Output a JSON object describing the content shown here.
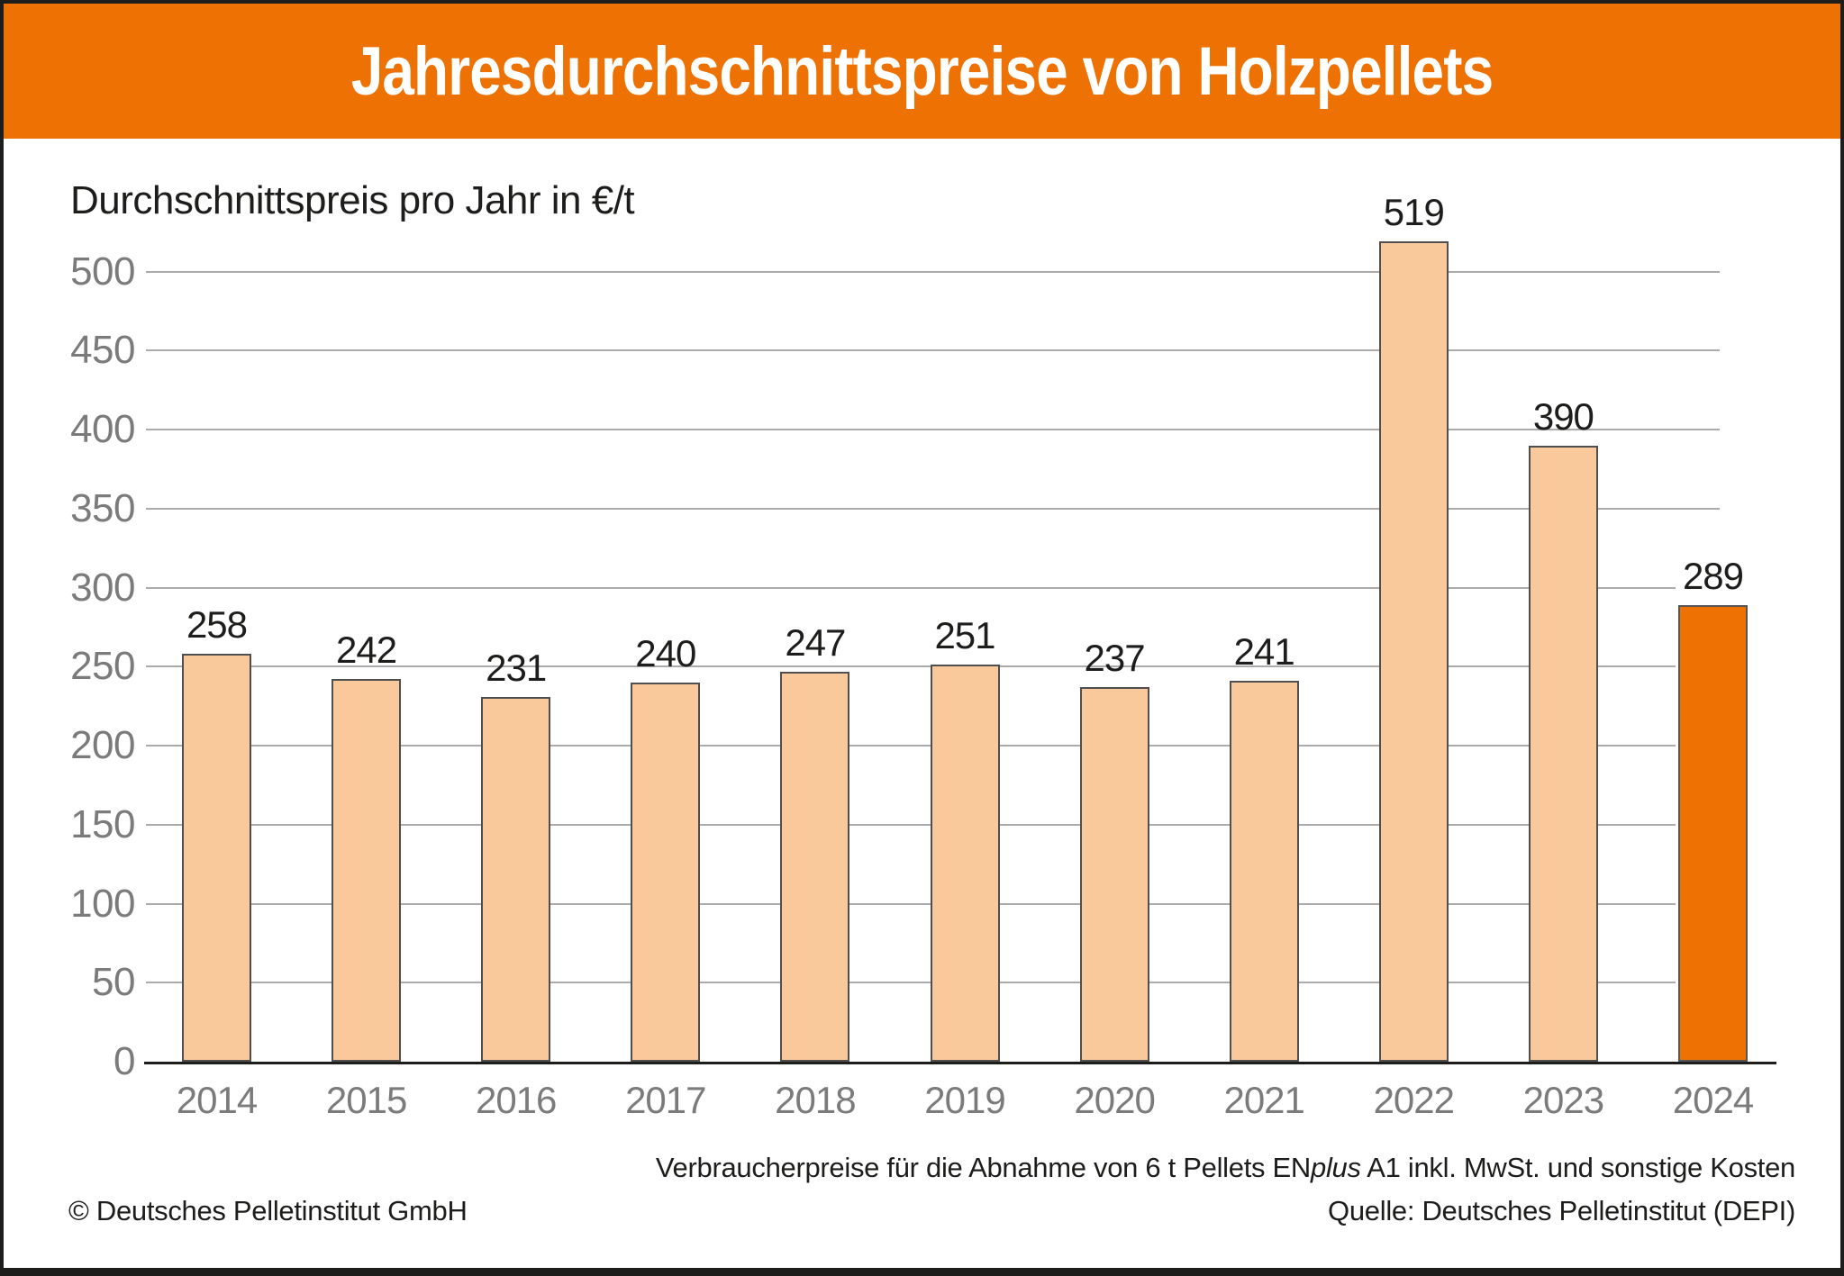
{
  "header": {
    "title": "Jahresdurchschnittspreise von Holzpellets"
  },
  "subtitle": "Durchschnittspreis pro Jahr in €/t",
  "chart_data": {
    "type": "bar",
    "title": "Jahresdurchschnittspreise von Holzpellets",
    "ylabel": "Durchschnittspreis pro Jahr in €/t",
    "xlabel": "",
    "categories": [
      "2014",
      "2015",
      "2016",
      "2017",
      "2018",
      "2019",
      "2020",
      "2021",
      "2022",
      "2023",
      "2024"
    ],
    "values": [
      258,
      242,
      231,
      240,
      247,
      251,
      237,
      241,
      519,
      390,
      289
    ],
    "ylim": [
      0,
      550
    ],
    "yticks": [
      0,
      50,
      100,
      150,
      200,
      250,
      300,
      350,
      400,
      450,
      500
    ],
    "grid": true,
    "legend": "none",
    "highlight_index": 10,
    "colors": {
      "bar_fill": "#f9c99b",
      "bar_border": "#4f4f4f",
      "highlight_fill": "#ee7203",
      "gridline": "#ababab",
      "axis": "#1d1d1b",
      "tick_label": "#7b7b7b",
      "value_label": "#1d1d1b"
    }
  },
  "footer": {
    "note_pre": "Verbraucherpreise für die Abnahme von 6 t Pellets EN",
    "note_italic": "plus",
    "note_post": " A1 inkl. MwSt. und sonstige Kosten",
    "source": "Quelle: Deutsches Pelletinstitut (DEPI)",
    "copyright": "© Deutsches Pelletinstitut GmbH"
  },
  "colors": {
    "brand_orange": "#ee7203",
    "header_text": "#ffffff",
    "frame_border": "#1d1d1b",
    "background": "#ffffff"
  }
}
